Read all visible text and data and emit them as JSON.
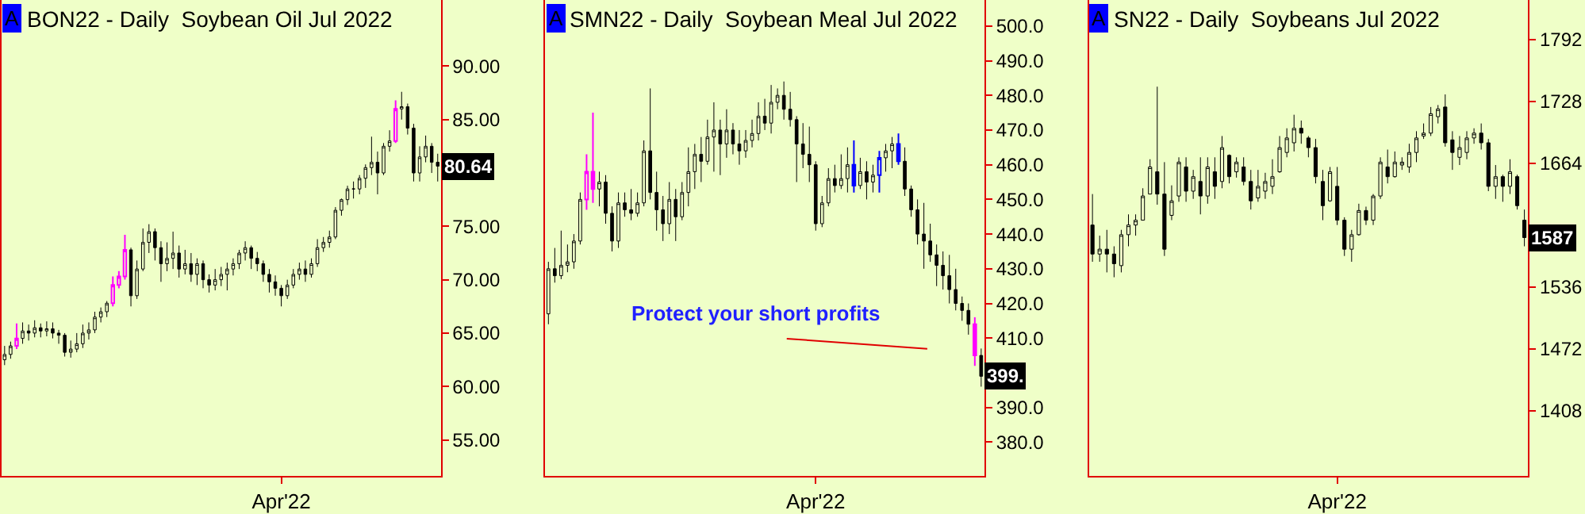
{
  "chart_data": [
    {
      "type": "candlestick",
      "title": "BON22 - Daily  Soybean Oil Jul 2022",
      "annotations": [
        "A",
        {
          "text": "80.64",
          "y": 80.64
        }
      ],
      "categories": [
        null,
        null,
        null,
        null,
        null,
        null,
        null,
        null,
        null,
        null,
        null,
        null,
        null,
        null,
        null,
        null,
        null,
        null,
        null,
        null,
        null,
        null,
        null,
        null,
        null,
        null,
        null,
        null,
        null,
        null,
        null,
        null,
        null,
        null,
        null,
        null,
        null,
        null,
        null,
        null,
        null,
        null,
        null,
        null,
        null,
        null,
        "Apr'22",
        null,
        null,
        null,
        null,
        null,
        null,
        null,
        null,
        null,
        null,
        null,
        null,
        null,
        null,
        null,
        null,
        null,
        null,
        null,
        null,
        null,
        null,
        null,
        null,
        null,
        null
      ],
      "ohlc": [
        [
          62.5,
          63.8,
          62.0,
          63.0
        ],
        [
          63.0,
          64.2,
          62.6,
          63.8
        ],
        [
          63.8,
          65.9,
          63.5,
          64.5
        ],
        [
          64.5,
          66.0,
          64.0,
          65.2
        ],
        [
          65.2,
          65.8,
          64.3,
          65.0
        ],
        [
          65.0,
          66.2,
          64.6,
          65.5
        ],
        [
          65.5,
          65.9,
          64.6,
          65.2
        ],
        [
          65.2,
          66.1,
          64.7,
          65.4
        ],
        [
          65.4,
          66.0,
          64.5,
          65.0
        ],
        [
          65.0,
          65.3,
          64.0,
          64.8
        ],
        [
          64.8,
          65.0,
          62.8,
          63.2
        ],
        [
          63.2,
          64.3,
          62.7,
          63.5
        ],
        [
          63.5,
          65.0,
          63.2,
          64.0
        ],
        [
          64.0,
          65.8,
          63.6,
          65.0
        ],
        [
          65.0,
          66.0,
          64.4,
          65.3
        ],
        [
          65.3,
          67.0,
          65.0,
          66.5
        ],
        [
          66.5,
          67.4,
          66.0,
          67.0
        ],
        [
          67.0,
          68.0,
          66.5,
          67.8
        ],
        [
          67.8,
          70.3,
          67.5,
          69.5
        ],
        [
          69.5,
          70.8,
          69.2,
          70.3
        ],
        [
          70.3,
          74.2,
          70.0,
          72.8
        ],
        [
          72.8,
          73.0,
          67.5,
          68.5
        ],
        [
          68.5,
          71.8,
          68.2,
          71.0
        ],
        [
          71.0,
          74.8,
          70.8,
          73.5
        ],
        [
          73.5,
          75.2,
          72.5,
          74.5
        ],
        [
          74.5,
          74.8,
          71.8,
          73.0
        ],
        [
          73.0,
          73.6,
          69.8,
          71.5
        ],
        [
          71.5,
          73.5,
          70.8,
          72.0
        ],
        [
          72.0,
          74.5,
          71.0,
          72.5
        ],
        [
          72.5,
          73.2,
          70.2,
          71.0
        ],
        [
          71.0,
          72.8,
          70.5,
          71.5
        ],
        [
          71.5,
          72.5,
          69.8,
          70.5
        ],
        [
          70.5,
          72.0,
          69.5,
          71.5
        ],
        [
          71.5,
          71.8,
          69.2,
          70.0
        ],
        [
          70.0,
          70.5,
          68.8,
          69.5
        ],
        [
          69.5,
          71.0,
          69.0,
          70.0
        ],
        [
          70.0,
          71.2,
          69.4,
          70.5
        ],
        [
          70.5,
          71.6,
          69.0,
          71.0
        ],
        [
          71.0,
          72.0,
          70.4,
          71.5
        ],
        [
          71.5,
          72.8,
          71.0,
          72.5
        ],
        [
          72.5,
          73.6,
          71.8,
          73.0
        ],
        [
          73.0,
          73.2,
          71.0,
          72.0
        ],
        [
          72.0,
          72.6,
          70.8,
          71.5
        ],
        [
          71.5,
          71.8,
          69.8,
          70.5
        ],
        [
          70.5,
          71.0,
          68.8,
          69.8
        ],
        [
          69.8,
          70.4,
          68.5,
          69.2
        ],
        [
          69.2,
          69.5,
          67.5,
          68.5
        ],
        [
          68.5,
          70.0,
          68.2,
          69.5
        ],
        [
          69.5,
          71.0,
          69.2,
          70.5
        ],
        [
          70.5,
          71.6,
          70.0,
          71.0
        ],
        [
          71.0,
          71.8,
          69.8,
          70.5
        ],
        [
          70.5,
          72.0,
          70.2,
          71.5
        ],
        [
          71.5,
          73.8,
          71.2,
          73.0
        ],
        [
          73.0,
          74.0,
          72.6,
          73.5
        ],
        [
          73.5,
          74.6,
          73.0,
          74.0
        ],
        [
          74.0,
          76.8,
          73.8,
          76.5
        ],
        [
          76.5,
          77.6,
          76.0,
          77.5
        ],
        [
          77.5,
          78.8,
          77.0,
          78.5
        ],
        [
          78.5,
          79.2,
          77.6,
          78.5
        ],
        [
          78.5,
          79.8,
          78.0,
          79.5
        ],
        [
          79.5,
          80.8,
          78.6,
          80.5
        ],
        [
          80.5,
          83.4,
          79.8,
          81.0
        ],
        [
          81.0,
          82.0,
          78.0,
          80.0
        ],
        [
          80.0,
          82.8,
          79.8,
          82.5
        ],
        [
          82.5,
          84.0,
          82.0,
          83.0
        ],
        [
          83.0,
          86.8,
          82.8,
          86.0
        ],
        [
          86.0,
          87.6,
          85.0,
          86.2
        ],
        [
          86.2,
          86.5,
          83.6,
          84.2
        ],
        [
          84.2,
          84.6,
          79.2,
          80.0
        ],
        [
          80.0,
          82.5,
          79.2,
          81.5
        ],
        [
          81.5,
          83.5,
          81.0,
          82.5
        ],
        [
          82.5,
          82.8,
          80.0,
          81.0
        ],
        [
          81.0,
          81.8,
          79.2,
          80.64
        ]
      ],
      "colors": [
        "#000000",
        "#000000",
        "#ff00ff",
        "#000000",
        "#000000",
        "#000000",
        "#000000",
        "#000000",
        "#000000",
        "#000000",
        "#000000",
        "#000000",
        "#000000",
        "#000000",
        "#000000",
        "#000000",
        "#000000",
        "#000000",
        "#ff00ff",
        "#ff00ff",
        "#ff00ff",
        "#000000",
        "#000000",
        "#000000",
        "#000000",
        "#000000",
        "#000000",
        "#000000",
        "#000000",
        "#000000",
        "#000000",
        "#000000",
        "#000000",
        "#000000",
        "#000000",
        "#000000",
        "#000000",
        "#000000",
        "#000000",
        "#000000",
        "#000000",
        "#000000",
        "#000000",
        "#000000",
        "#000000",
        "#000000",
        "#000000",
        "#000000",
        "#000000",
        "#000000",
        "#000000",
        "#000000",
        "#000000",
        "#000000",
        "#000000",
        "#000000",
        "#000000",
        "#000000",
        "#000000",
        "#000000",
        "#000000",
        "#000000",
        "#000000",
        "#000000",
        "#000000",
        "#ff00ff",
        "#000000",
        "#000000",
        "#000000",
        "#000000",
        "#000000",
        "#000000",
        "#000000"
      ],
      "ylim": [
        51.6,
        96.2
      ],
      "yticks": [
        {
          "value": 55,
          "label": "55.00"
        },
        {
          "value": 60,
          "label": "60.00"
        },
        {
          "value": 65,
          "label": "65.00"
        },
        {
          "value": 70,
          "label": "70.00"
        },
        {
          "value": 75,
          "label": "75.00"
        },
        {
          "value": 85,
          "label": "85.00"
        },
        {
          "value": 90,
          "label": "90.00"
        }
      ]
    },
    {
      "type": "candlestick",
      "title": "SMN22 - Daily  Soybean Meal Jul 2022",
      "annotations": [
        "A",
        "Protect your short profits",
        {
          "text": "399.",
          "y": 399
        }
      ],
      "categories": [
        null,
        null,
        null,
        null,
        null,
        null,
        null,
        null,
        null,
        null,
        null,
        null,
        null,
        null,
        null,
        null,
        null,
        null,
        null,
        null,
        null,
        null,
        null,
        null,
        null,
        null,
        null,
        null,
        null,
        null,
        null,
        null,
        null,
        null,
        null,
        null,
        null,
        null,
        null,
        null,
        null,
        null,
        "Apr'22",
        null,
        null,
        null,
        null,
        null,
        null,
        null,
        null,
        null,
        null,
        null,
        null,
        null,
        null,
        null,
        null,
        null,
        null,
        null,
        null,
        null,
        null,
        null,
        null,
        null,
        null
      ],
      "ohlc": [
        [
          417,
          432,
          414,
          430
        ],
        [
          430,
          436,
          426,
          428
        ],
        [
          428,
          441,
          427,
          431
        ],
        [
          431,
          437,
          429,
          432
        ],
        [
          432,
          440,
          430,
          438
        ],
        [
          438,
          452,
          437,
          450
        ],
        [
          450,
          463,
          447,
          458
        ],
        [
          458,
          475,
          449,
          453
        ],
        [
          453,
          458,
          448,
          455
        ],
        [
          455,
          457,
          443,
          446
        ],
        [
          446,
          448,
          435,
          438
        ],
        [
          438,
          452,
          436,
          449
        ],
        [
          449,
          452,
          445,
          447
        ],
        [
          447,
          453,
          444,
          446
        ],
        [
          446,
          452,
          445,
          449
        ],
        [
          449,
          467,
          448,
          464
        ],
        [
          464,
          482,
          450,
          452
        ],
        [
          452,
          458,
          441,
          447
        ],
        [
          447,
          451,
          438,
          443
        ],
        [
          443,
          455,
          440,
          450
        ],
        [
          450,
          453,
          438,
          445
        ],
        [
          445,
          455,
          444,
          452
        ],
        [
          452,
          465,
          448,
          458
        ],
        [
          458,
          466,
          453,
          463
        ],
        [
          463,
          468,
          455,
          461
        ],
        [
          461,
          473,
          460,
          468
        ],
        [
          468,
          478,
          458,
          470
        ],
        [
          470,
          473,
          457,
          466
        ],
        [
          466,
          476,
          462,
          470
        ],
        [
          470,
          472,
          463,
          466
        ],
        [
          466,
          470,
          460,
          464
        ],
        [
          464,
          470,
          462,
          467
        ],
        [
          467,
          473,
          465,
          469
        ],
        [
          469,
          478,
          467,
          474
        ],
        [
          474,
          479,
          470,
          472
        ],
        [
          472,
          483,
          469,
          478
        ],
        [
          478,
          482,
          476,
          480
        ],
        [
          480,
          484,
          473,
          476
        ],
        [
          476,
          481,
          471,
          473
        ],
        [
          473,
          474,
          455,
          466
        ],
        [
          466,
          472,
          459,
          463
        ],
        [
          463,
          471,
          455,
          460
        ],
        [
          460,
          461,
          441,
          443
        ],
        [
          443,
          451,
          442,
          449
        ],
        [
          449,
          459,
          448,
          456
        ],
        [
          456,
          460,
          452,
          454
        ],
        [
          454,
          463,
          453,
          456
        ],
        [
          456,
          465,
          452,
          460
        ],
        [
          460,
          467,
          452,
          454
        ],
        [
          454,
          462,
          453,
          458
        ],
        [
          458,
          461,
          450,
          455
        ],
        [
          455,
          460,
          452,
          457
        ],
        [
          457,
          464,
          452,
          462
        ],
        [
          462,
          466,
          458,
          464
        ],
        [
          464,
          468,
          459,
          466
        ],
        [
          466,
          469,
          460,
          461
        ],
        [
          461,
          465,
          451,
          453
        ],
        [
          453,
          454,
          445,
          447
        ],
        [
          447,
          450,
          437,
          440
        ],
        [
          440,
          449,
          430,
          438
        ],
        [
          438,
          443,
          432,
          434
        ],
        [
          434,
          437,
          425,
          431
        ],
        [
          431,
          435,
          424,
          428
        ],
        [
          428,
          434,
          420,
          424
        ],
        [
          424,
          430,
          418,
          420
        ],
        [
          420,
          422,
          415,
          418
        ],
        [
          418,
          420,
          411,
          414
        ],
        [
          414,
          416,
          402,
          405
        ],
        [
          405,
          407,
          396,
          399
        ]
      ],
      "colors": [
        "#000000",
        "#000000",
        "#000000",
        "#000000",
        "#000000",
        "#000000",
        "#ff00ff",
        "#ff00ff",
        "#000000",
        "#000000",
        "#000000",
        "#000000",
        "#000000",
        "#000000",
        "#000000",
        "#000000",
        "#000000",
        "#000000",
        "#000000",
        "#000000",
        "#000000",
        "#000000",
        "#000000",
        "#000000",
        "#000000",
        "#000000",
        "#000000",
        "#000000",
        "#000000",
        "#000000",
        "#000000",
        "#000000",
        "#000000",
        "#000000",
        "#000000",
        "#000000",
        "#000000",
        "#000000",
        "#000000",
        "#000000",
        "#000000",
        "#000000",
        "#000000",
        "#000000",
        "#000000",
        "#000000",
        "#000000",
        "#000000",
        "#0000ff",
        "#000000",
        "#000000",
        "#000000",
        "#0000ff",
        "#000000",
        "#000000",
        "#0000ff",
        "#000000",
        "#000000",
        "#000000",
        "#000000",
        "#000000",
        "#000000",
        "#000000",
        "#000000",
        "#000000",
        "#000000",
        "#000000",
        "#ff00ff",
        "#000000"
      ],
      "ylim": [
        370.2,
        507.5
      ],
      "yticks": [
        {
          "value": 380,
          "label": "380.0"
        },
        {
          "value": 390,
          "label": "390.0"
        },
        {
          "value": 410,
          "label": "410.0"
        },
        {
          "value": 420,
          "label": "420.0"
        },
        {
          "value": 430,
          "label": "430.0"
        },
        {
          "value": 440,
          "label": "440.0"
        },
        {
          "value": 450,
          "label": "450.0"
        },
        {
          "value": 460,
          "label": "460.0"
        },
        {
          "value": 470,
          "label": "470.0"
        },
        {
          "value": 480,
          "label": "480.0"
        },
        {
          "value": 490,
          "label": "490.0"
        },
        {
          "value": 500,
          "label": "500.0"
        }
      ]
    },
    {
      "type": "candlestick",
      "title": "SN22 - Daily  Soybeans Jul 2022",
      "annotations": [
        "A",
        {
          "text": "1587",
          "y": 1587
        }
      ],
      "categories": [
        null,
        null,
        null,
        null,
        null,
        null,
        null,
        null,
        null,
        null,
        null,
        null,
        null,
        null,
        null,
        null,
        null,
        null,
        null,
        null,
        null,
        null,
        null,
        null,
        null,
        null,
        null,
        null,
        null,
        null,
        null,
        null,
        null,
        null,
        "Apr'22",
        null,
        null,
        null,
        null,
        null,
        null,
        null,
        null,
        null,
        null,
        null,
        null,
        null,
        null,
        null,
        null,
        null,
        null,
        null,
        null,
        null,
        null,
        null,
        null,
        null,
        null
      ],
      "ohlc": [
        [
          1600,
          1632,
          1562,
          1570
        ],
        [
          1570,
          1589,
          1562,
          1575
        ],
        [
          1575,
          1595,
          1551,
          1570
        ],
        [
          1570,
          1578,
          1546,
          1560
        ],
        [
          1558,
          1595,
          1551,
          1590
        ],
        [
          1590,
          1611,
          1578,
          1600
        ],
        [
          1600,
          1611,
          1589,
          1605
        ],
        [
          1605,
          1638,
          1605,
          1630
        ],
        [
          1632,
          1668,
          1632,
          1660
        ],
        [
          1655,
          1743,
          1621,
          1632
        ],
        [
          1632,
          1665,
          1568,
          1575
        ],
        [
          1610,
          1641,
          1605,
          1625
        ],
        [
          1630,
          1670,
          1624,
          1665
        ],
        [
          1660,
          1670,
          1624,
          1635
        ],
        [
          1635,
          1657,
          1627,
          1650
        ],
        [
          1645,
          1670,
          1611,
          1630
        ],
        [
          1630,
          1670,
          1622,
          1660
        ],
        [
          1655,
          1670,
          1627,
          1640
        ],
        [
          1645,
          1692,
          1638,
          1680
        ],
        [
          1672,
          1673,
          1643,
          1650
        ],
        [
          1655,
          1670,
          1649,
          1665
        ],
        [
          1660,
          1670,
          1641,
          1645
        ],
        [
          1645,
          1657,
          1616,
          1625
        ],
        [
          1628,
          1657,
          1624,
          1640
        ],
        [
          1635,
          1654,
          1627,
          1645
        ],
        [
          1640,
          1668,
          1632,
          1650
        ],
        [
          1655,
          1692,
          1654,
          1680
        ],
        [
          1675,
          1700,
          1670,
          1690
        ],
        [
          1685,
          1714,
          1676,
          1700
        ],
        [
          1700,
          1708,
          1684,
          1695
        ],
        [
          1690,
          1692,
          1670,
          1680
        ],
        [
          1680,
          1689,
          1643,
          1650
        ],
        [
          1645,
          1657,
          1605,
          1620
        ],
        [
          1625,
          1660,
          1624,
          1655
        ],
        [
          1640,
          1660,
          1600,
          1605
        ],
        [
          1605,
          1608,
          1568,
          1575
        ],
        [
          1575,
          1595,
          1562,
          1590
        ],
        [
          1590,
          1622,
          1589,
          1615
        ],
        [
          1615,
          1619,
          1600,
          1605
        ],
        [
          1605,
          1632,
          1600,
          1630
        ],
        [
          1630,
          1670,
          1627,
          1665
        ],
        [
          1660,
          1678,
          1643,
          1650
        ],
        [
          1650,
          1676,
          1649,
          1665
        ],
        [
          1662,
          1670,
          1657,
          1665
        ],
        [
          1660,
          1684,
          1654,
          1675
        ],
        [
          1675,
          1697,
          1665,
          1690
        ],
        [
          1692,
          1705,
          1689,
          1695
        ],
        [
          1695,
          1722,
          1692,
          1715
        ],
        [
          1712,
          1724,
          1705,
          1720
        ],
        [
          1722,
          1735,
          1681,
          1685
        ],
        [
          1688,
          1697,
          1657,
          1675
        ],
        [
          1670,
          1692,
          1662,
          1680
        ],
        [
          1675,
          1697,
          1668,
          1690
        ],
        [
          1690,
          1700,
          1684,
          1695
        ],
        [
          1695,
          1705,
          1678,
          1685
        ],
        [
          1685,
          1689,
          1635,
          1640
        ],
        [
          1640,
          1662,
          1627,
          1650
        ],
        [
          1650,
          1652,
          1624,
          1640
        ],
        [
          1640,
          1668,
          1632,
          1655
        ],
        [
          1650,
          1652,
          1616,
          1620
        ],
        [
          1605,
          1616,
          1578,
          1587
        ]
      ],
      "color": "#000000",
      "ylim": [
        1340.4,
        1832.6
      ],
      "yticks": [
        1408,
        1472,
        1536,
        1664,
        1728,
        1792
      ]
    }
  ]
}
